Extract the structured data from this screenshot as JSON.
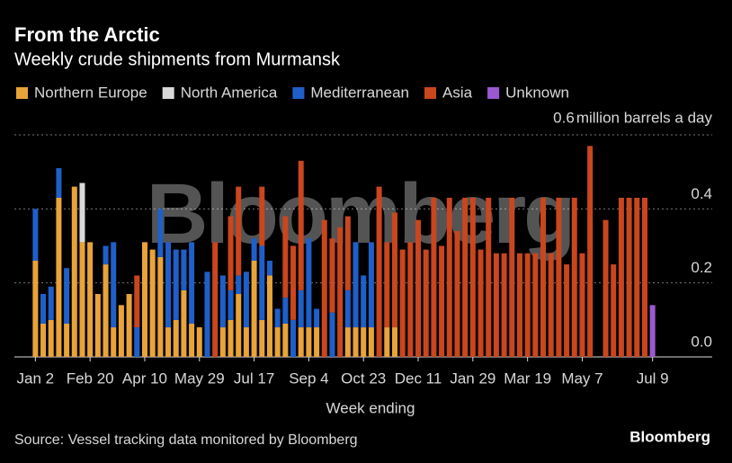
{
  "chart_data": {
    "type": "stacked_bar",
    "title": "From the Arctic",
    "subtitle": "Weekly crude shipments from Murmansk",
    "y_label": "million barrels a day",
    "x_label": "Week ending",
    "source": "Source: Vessel tracking data monitored by Bloomberg",
    "watermark": "Bloomberg",
    "brand": "Bloomberg",
    "categories": [
      "Jan 2",
      null,
      null,
      null,
      null,
      null,
      null,
      "Feb 20",
      null,
      null,
      null,
      null,
      null,
      null,
      "Apr 10",
      null,
      null,
      null,
      null,
      null,
      null,
      "May 29",
      null,
      null,
      null,
      null,
      null,
      null,
      "Jul 17",
      null,
      null,
      null,
      null,
      null,
      null,
      "Sep 4",
      null,
      null,
      null,
      null,
      null,
      null,
      "Oct 23",
      null,
      null,
      null,
      null,
      null,
      null,
      "Dec 11",
      null,
      null,
      null,
      null,
      null,
      null,
      "Jan 29",
      null,
      null,
      null,
      null,
      null,
      null,
      "Mar 19",
      null,
      null,
      null,
      null,
      null,
      null,
      "May 7",
      null,
      null,
      null,
      null,
      null,
      null,
      null,
      null,
      "Jul 9"
    ],
    "series": [
      {
        "name": "Northern Europe",
        "color": "#e8a33a",
        "values": [
          0.26,
          0.09,
          0.1,
          0.43,
          0.09,
          0.46,
          0.31,
          0.31,
          0.17,
          0.25,
          0.08,
          0.14,
          0.17,
          0,
          0.31,
          0.29,
          0.27,
          0.08,
          0.1,
          0.18,
          0.09,
          0.08,
          0,
          0,
          0.08,
          0.1,
          0.17,
          0.08,
          0.26,
          0.1,
          0.22,
          0.08,
          0.09,
          0,
          0.08,
          0.08,
          0.08,
          0,
          0,
          0,
          0.08,
          0.08,
          0.08,
          0.08,
          0,
          0.08,
          0.08,
          0,
          0,
          0,
          0,
          0,
          0,
          0,
          0,
          0,
          0,
          0,
          0,
          0,
          0,
          0,
          0,
          0,
          0,
          0,
          0,
          0,
          0,
          0,
          0,
          0,
          0,
          0,
          0,
          0,
          0,
          0,
          0,
          0
        ]
      },
      {
        "name": "North America",
        "color": "#d9d9d9",
        "values": [
          0,
          0,
          0,
          0,
          0,
          0,
          0.16,
          0,
          0,
          0,
          0,
          0,
          0,
          0,
          0,
          0,
          0,
          0,
          0,
          0,
          0,
          0,
          0,
          0,
          0,
          0,
          0,
          0,
          0,
          0,
          0,
          0,
          0,
          0,
          0,
          0,
          0,
          0,
          0,
          0,
          0,
          0,
          0,
          0,
          0,
          0,
          0,
          0,
          0,
          0,
          0,
          0,
          0,
          0,
          0,
          0,
          0,
          0,
          0,
          0,
          0,
          0,
          0,
          0,
          0,
          0,
          0,
          0,
          0,
          0,
          0,
          0,
          0,
          0,
          0,
          0,
          0,
          0,
          0,
          0
        ]
      },
      {
        "name": "Mediterranean",
        "color": "#1f5fc8",
        "values": [
          0.14,
          0.08,
          0.09,
          0.08,
          0.15,
          0,
          0,
          0,
          0,
          0.05,
          0.23,
          0,
          0,
          0.08,
          0,
          0,
          0.13,
          0.23,
          0.19,
          0.11,
          0.22,
          0,
          0.23,
          0,
          0.14,
          0.08,
          0.05,
          0.15,
          0.06,
          0.2,
          0.04,
          0.05,
          0.07,
          0.1,
          0.1,
          0.24,
          0.05,
          0,
          0.12,
          0,
          0.1,
          0.23,
          0.14,
          0.23,
          0,
          0,
          0,
          0,
          0,
          0,
          0,
          0,
          0,
          0,
          0,
          0,
          0,
          0,
          0,
          0,
          0,
          0,
          0,
          0,
          0,
          0,
          0,
          0,
          0,
          0,
          0,
          0,
          0,
          0,
          0,
          0,
          0,
          0,
          0,
          0
        ]
      },
      {
        "name": "Asia",
        "color": "#c9461e",
        "values": [
          0,
          0,
          0,
          0,
          0,
          0,
          0,
          0,
          0,
          0,
          0,
          0,
          0,
          0.14,
          0,
          0,
          0,
          0,
          0,
          0,
          0,
          0,
          0,
          0.31,
          0,
          0.2,
          0.24,
          0,
          0,
          0.16,
          0,
          0,
          0.22,
          0.2,
          0.35,
          0,
          0,
          0.37,
          0.2,
          0.35,
          0.2,
          0,
          0,
          0,
          0.46,
          0.23,
          0.31,
          0.29,
          0.31,
          0.37,
          0.29,
          0.43,
          0.3,
          0.43,
          0.34,
          0.43,
          0.43,
          0.29,
          0.43,
          0.28,
          0.28,
          0.43,
          0.28,
          0.28,
          0.28,
          0.43,
          0.28,
          0.43,
          0.25,
          0.43,
          0.28,
          0.57,
          0,
          0.37,
          0.25,
          0.43,
          0.43,
          0.43,
          0.43,
          0
        ]
      },
      {
        "name": "Unknown",
        "color": "#9b59d0",
        "values": [
          0,
          0,
          0,
          0,
          0,
          0,
          0,
          0,
          0,
          0,
          0,
          0,
          0,
          0,
          0,
          0,
          0,
          0,
          0,
          0,
          0,
          0,
          0,
          0,
          0,
          0,
          0,
          0,
          0,
          0,
          0,
          0,
          0,
          0,
          0,
          0,
          0,
          0,
          0,
          0,
          0,
          0,
          0,
          0,
          0,
          0,
          0,
          0,
          0,
          0,
          0,
          0,
          0,
          0,
          0,
          0,
          0,
          0,
          0,
          0,
          0,
          0,
          0,
          0,
          0,
          0,
          0,
          0,
          0,
          0,
          0,
          0,
          0,
          0,
          0,
          0,
          0,
          0,
          0,
          0.14
        ]
      }
    ],
    "ylim": [
      0,
      0.6
    ],
    "yticks": [
      {
        "value": 0,
        "label": "0.0"
      },
      0.2,
      0.4,
      0.6
    ],
    "grid": true
  }
}
